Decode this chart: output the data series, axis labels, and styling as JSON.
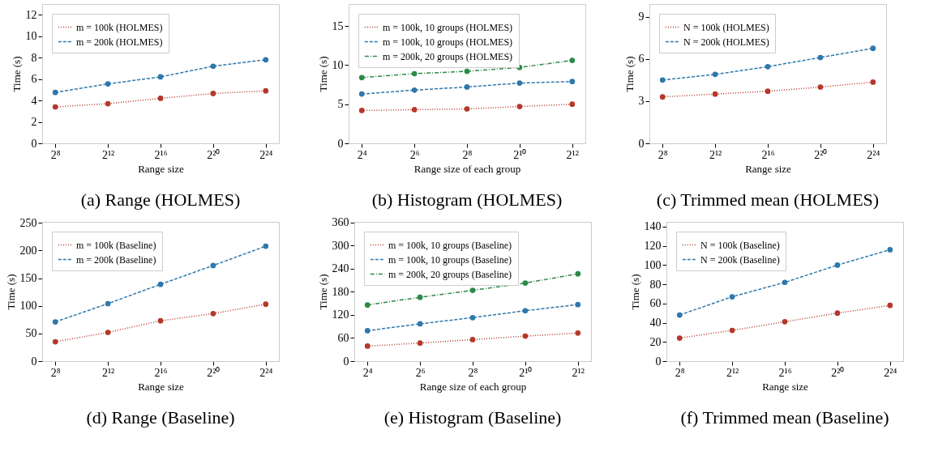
{
  "chart_data": [
    {
      "type": "line",
      "title": "(a) Range (HOLMES)",
      "xlabel": "Range size",
      "ylabel": "Time (s)",
      "categories": [
        "2⁸",
        "2¹²",
        "2¹⁶",
        "2²⁰",
        "2²⁴"
      ],
      "ylim": [
        0,
        13
      ],
      "yticks": [
        0,
        2,
        4,
        6,
        8,
        10,
        12
      ],
      "grid": false,
      "legend": "top left",
      "marker": "circle",
      "series": [
        {
          "name": "m = 100k (HOLMES)",
          "color": "#b5382a",
          "line_style": "dotted",
          "values": [
            3.4,
            3.7,
            4.2,
            4.65,
            4.9
          ]
        },
        {
          "name": "m = 200k (HOLMES)",
          "color": "#2e78ab",
          "line_style": "dashed",
          "values": [
            4.75,
            5.55,
            6.2,
            7.2,
            7.8
          ]
        }
      ]
    },
    {
      "type": "line",
      "title": "(b) Histogram (HOLMES)",
      "xlabel": "Range size of each group",
      "ylabel": "Time (s)",
      "categories": [
        "2⁴",
        "2⁶",
        "2⁸",
        "2¹⁰",
        "2¹²"
      ],
      "ylim": [
        0,
        17.8
      ],
      "yticks": [
        0,
        5,
        10,
        15
      ],
      "grid": false,
      "legend": "top left",
      "marker": "circle",
      "series": [
        {
          "name": "m = 100k, 10 groups (HOLMES)",
          "color": "#b5382a",
          "line_style": "dotted",
          "values": [
            4.2,
            4.3,
            4.4,
            4.7,
            5.0
          ]
        },
        {
          "name": "m = 100k, 10 groups (HOLMES)",
          "color": "#2e78ab",
          "line_style": "dashed",
          "values": [
            6.3,
            6.8,
            7.2,
            7.7,
            7.9
          ]
        },
        {
          "name": "m = 200k, 20 groups (HOLMES)",
          "color": "#2b8a47",
          "line_style": "dashdot",
          "values": [
            8.4,
            8.9,
            9.2,
            9.7,
            10.6
          ]
        }
      ]
    },
    {
      "type": "line",
      "title": "(c) Trimmed mean (HOLMES)",
      "xlabel": "Range size",
      "ylabel": "Time (s)",
      "categories": [
        "2⁸",
        "2¹²",
        "2¹⁶",
        "2²⁰",
        "2²⁴"
      ],
      "ylim": [
        0,
        9.9
      ],
      "yticks": [
        0,
        3,
        6,
        9
      ],
      "grid": false,
      "legend": "top left",
      "marker": "circle",
      "series": [
        {
          "name": "N = 100k (HOLMES)",
          "color": "#b5382a",
          "line_style": "dotted",
          "values": [
            3.3,
            3.5,
            3.7,
            4.0,
            4.35
          ]
        },
        {
          "name": "N = 200k (HOLMES)",
          "color": "#2e78ab",
          "line_style": "dashed",
          "values": [
            4.5,
            4.9,
            5.45,
            6.1,
            6.75
          ]
        }
      ]
    },
    {
      "type": "line",
      "title": "(d) Range (Baseline)",
      "xlabel": "Range size",
      "ylabel": "Time (s)",
      "categories": [
        "2⁸",
        "2¹²",
        "2¹⁶",
        "2²⁰",
        "2²⁴"
      ],
      "ylim": [
        0,
        252
      ],
      "yticks": [
        0,
        50,
        100,
        150,
        200,
        250
      ],
      "grid": false,
      "legend": "top left",
      "marker": "circle",
      "series": [
        {
          "name": "m = 100k (Baseline)",
          "color": "#b5382a",
          "line_style": "dotted",
          "values": [
            35,
            52,
            73,
            86,
            103
          ]
        },
        {
          "name": "m = 200k (Baseline)",
          "color": "#2e78ab",
          "line_style": "dashed",
          "values": [
            71,
            104,
            139,
            173,
            208
          ]
        }
      ]
    },
    {
      "type": "line",
      "title": "(e) Histogram (Baseline)",
      "xlabel": "Range size of each group",
      "ylabel": "Time (s)",
      "categories": [
        "2⁴",
        "2⁶",
        "2⁸",
        "2¹⁰",
        "2¹²"
      ],
      "ylim": [
        0,
        362
      ],
      "yticks": [
        0,
        60,
        120,
        180,
        240,
        300,
        360
      ],
      "grid": false,
      "legend": "top left",
      "marker": "circle",
      "series": [
        {
          "name": "m = 100k, 10 groups (Baseline)",
          "color": "#b5382a",
          "line_style": "dotted",
          "values": [
            39,
            47,
            56,
            65,
            73
          ]
        },
        {
          "name": "m = 100k, 10 groups (Baseline)",
          "color": "#2e78ab",
          "line_style": "dashed",
          "values": [
            79,
            97,
            113,
            131,
            147
          ]
        },
        {
          "name": "m = 200k, 20 groups (Baseline)",
          "color": "#2b8a47",
          "line_style": "dashdot",
          "values": [
            146,
            166,
            184,
            203,
            227
          ]
        }
      ]
    },
    {
      "type": "line",
      "title": "(f) Trimmed mean (Baseline)",
      "xlabel": "Range size",
      "ylabel": "Time (s)",
      "categories": [
        "2⁸",
        "2¹²",
        "2¹⁶",
        "2²⁰",
        "2²⁴"
      ],
      "ylim": [
        0,
        145
      ],
      "yticks": [
        0,
        20,
        40,
        60,
        80,
        100,
        120,
        140
      ],
      "grid": false,
      "legend": "top left",
      "marker": "circle",
      "series": [
        {
          "name": "N = 100k (Baseline)",
          "color": "#b5382a",
          "line_style": "dotted",
          "values": [
            24,
            32,
            41,
            50,
            58
          ]
        },
        {
          "name": "N = 200k (Baseline)",
          "color": "#2e78ab",
          "line_style": "dashed",
          "values": [
            48,
            67,
            82,
            100,
            116
          ]
        }
      ]
    }
  ]
}
